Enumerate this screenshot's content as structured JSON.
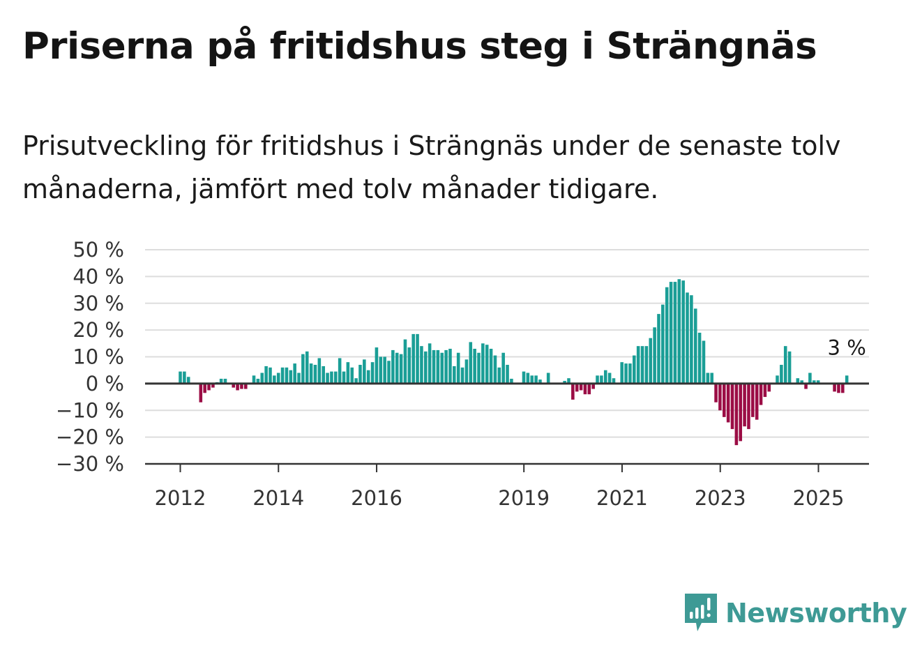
{
  "title": "Priserna på fritidshus steg i Strängnäs",
  "subtitle": "Prisutveckling för fritidshus i Strängnäs under de senaste tolv månaderna, jämfört med tolv månader tidigare.",
  "brand": "Newsworthy",
  "colors": {
    "positive": "#1a9e96",
    "negative": "#9b0d45",
    "grid": "#dddddd",
    "axis": "#333333",
    "brand": "#3e9a95"
  },
  "chart_data": {
    "type": "bar",
    "ylim": [
      -30,
      50
    ],
    "yticks": [
      50,
      40,
      30,
      20,
      10,
      0,
      -10,
      -20,
      -30
    ],
    "ytick_labels": [
      "50 %",
      "40 %",
      "30 %",
      "20 %",
      "10 %",
      "0 %",
      "−10 %",
      "−20 %",
      "−30 %"
    ],
    "xtick_labels": [
      "2012",
      "2014",
      "2016",
      "2019",
      "2021",
      "2023",
      "2025"
    ],
    "xtick_positions": [
      2012.0,
      2014.0,
      2016.0,
      2019.0,
      2021.0,
      2023.0,
      2025.0
    ],
    "x_start": 2012.0,
    "x_step": 0.0833,
    "values": [
      4.5,
      4.5,
      2.5,
      null,
      null,
      -7,
      -3.5,
      -2.5,
      -1.5,
      0.5,
      1.8,
      1.8,
      null,
      -1.5,
      -2.5,
      -2,
      -2,
      null,
      3,
      1.8,
      4,
      6.5,
      6,
      3,
      4,
      6,
      6,
      5,
      7.5,
      4,
      11,
      12,
      7.5,
      7,
      9.5,
      6.5,
      4,
      4.5,
      4.5,
      9.5,
      4.5,
      8,
      6,
      2,
      7,
      9,
      5,
      8,
      13.5,
      10,
      10,
      8.5,
      12.5,
      11.5,
      11,
      16.5,
      13.5,
      18.5,
      18.5,
      14,
      12,
      15,
      12.5,
      12.5,
      11.5,
      12.5,
      13,
      6.5,
      11.5,
      6,
      9,
      15.5,
      13,
      11.5,
      15,
      14.5,
      13,
      10.5,
      6,
      11.5,
      7,
      1.8,
      null,
      null,
      4.5,
      4,
      3,
      3,
      1.5,
      null,
      4,
      null,
      null,
      null,
      1,
      2,
      -6,
      -3,
      -2.5,
      -4,
      -4,
      -2,
      3,
      3,
      5,
      4,
      2,
      null,
      8,
      7.5,
      7.5,
      10.5,
      14,
      14,
      14,
      17,
      21,
      26,
      29.5,
      36,
      38,
      38,
      39,
      38.5,
      34,
      33,
      28,
      19,
      16,
      4,
      4,
      -7,
      -10,
      -12.5,
      -14.5,
      -17,
      -23,
      -21.5,
      -16,
      -17,
      -12.5,
      -13.5,
      -8,
      -5,
      -3,
      null,
      3,
      7,
      14,
      12,
      null,
      2,
      1.2,
      -2,
      4,
      1.2,
      1.2,
      null,
      null,
      null,
      -3,
      -3.5,
      -3.5,
      3
    ],
    "annotation": {
      "label": "3 %",
      "value": 3
    }
  }
}
